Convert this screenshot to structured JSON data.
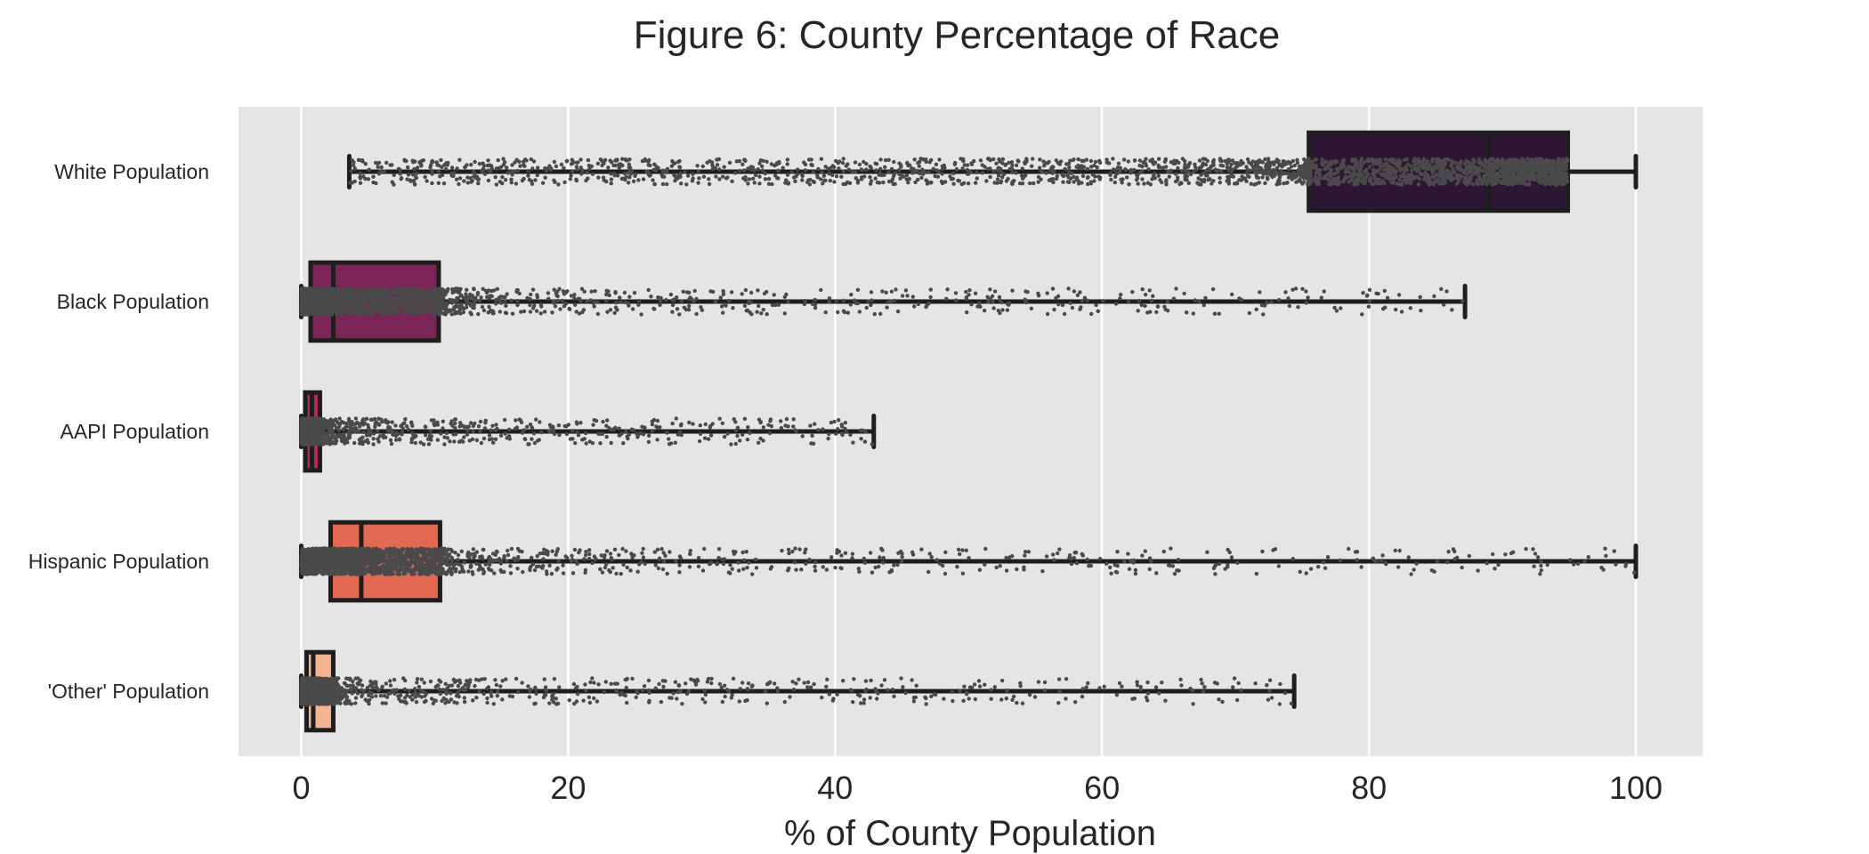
{
  "chart_data": {
    "type": "box",
    "title": "Figure 6: County Percentage of Race",
    "xlabel": "% of County Population",
    "ylabel": "",
    "xlim": [
      -4.7,
      105
    ],
    "xticks": [
      0,
      20,
      40,
      60,
      80,
      100
    ],
    "grid": true,
    "orientation": "horizontal",
    "background": "#e5e5e5",
    "grid_color": "#ffffff",
    "box_edge_color": "#1e1e1e",
    "point_color": "#4a4a4a",
    "categories": [
      "White Population",
      "Black Population",
      "AAPI Population",
      "Hispanic Population",
      "'Other' Population"
    ],
    "series": [
      {
        "category": "White Population",
        "min": 3.6,
        "q1": 75.5,
        "median": 89.0,
        "q3": 94.9,
        "max": 100.0,
        "color": "#2d1633",
        "points_shown": true
      },
      {
        "category": "Black Population",
        "min": 0.0,
        "q1": 0.7,
        "median": 2.4,
        "q3": 10.3,
        "max": 87.2,
        "color": "#7b2458",
        "points_shown": true
      },
      {
        "category": "AAPI Population",
        "min": 0.0,
        "q1": 0.3,
        "median": 0.8,
        "q3": 1.4,
        "max": 42.9,
        "color": "#b4285e",
        "points_shown": true
      },
      {
        "category": "Hispanic Population",
        "min": 0.0,
        "q1": 2.2,
        "median": 4.5,
        "q3": 10.4,
        "max": 100.0,
        "color": "#e26a52",
        "points_shown": true
      },
      {
        "category": "'Other' Population",
        "min": 0.0,
        "q1": 0.4,
        "median": 0.9,
        "q3": 2.4,
        "max": 74.4,
        "color": "#f4b494",
        "points_shown": true
      }
    ]
  }
}
